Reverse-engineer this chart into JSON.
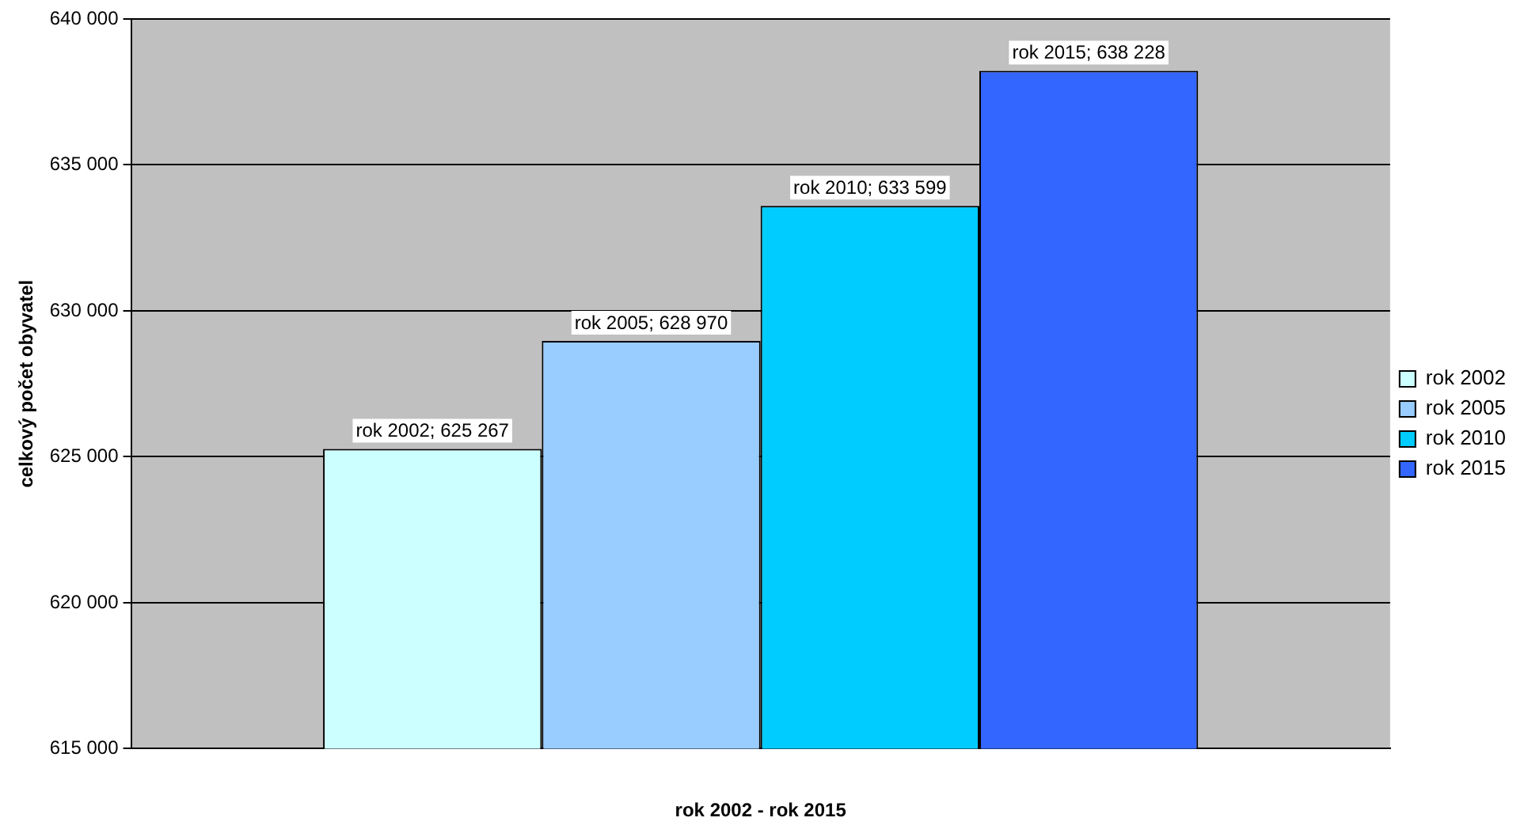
{
  "chart_data": {
    "type": "bar",
    "xlabel": "rok 2002 - rok 2015",
    "ylabel": "celkový počet obyvatel",
    "categories": [
      null
    ],
    "series": [
      {
        "name": "rok 2002",
        "color": "#ccffff",
        "values": [
          625267
        ],
        "value_labels": [
          "rok 2002; 625 267"
        ]
      },
      {
        "name": "rok 2005",
        "color": "#99ccff",
        "values": [
          628970
        ],
        "value_labels": [
          "rok 2005; 628 970"
        ]
      },
      {
        "name": "rok 2010",
        "color": "#00ccff",
        "values": [
          633599
        ],
        "value_labels": [
          "rok 2010; 633 599"
        ]
      },
      {
        "name": "rok 2015",
        "color": "#3366ff",
        "values": [
          638228
        ],
        "value_labels": [
          "rok 2015; 638 228"
        ]
      }
    ],
    "ylim": [
      615000,
      640000
    ],
    "yticks": [
      {
        "value": 615000,
        "label": "615 000"
      },
      {
        "value": 620000,
        "label": "620 000"
      },
      {
        "value": 625000,
        "label": "625 000"
      },
      {
        "value": 630000,
        "label": "630 000"
      },
      {
        "value": 635000,
        "label": "635 000"
      },
      {
        "value": 640000,
        "label": "640 000"
      }
    ],
    "grid": "y",
    "legend": "right"
  }
}
